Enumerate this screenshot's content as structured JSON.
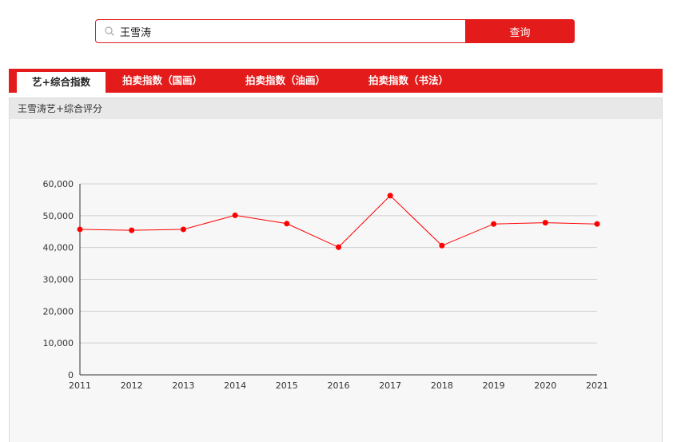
{
  "search": {
    "value": "王雪涛",
    "button_label": "查询"
  },
  "tabs": [
    {
      "label": "艺+综合指数",
      "active": true
    },
    {
      "label": "拍卖指数（国画）",
      "active": false
    },
    {
      "label": "拍卖指数（油画）",
      "active": false
    },
    {
      "label": "拍卖指数（书法）",
      "active": false
    }
  ],
  "panel": {
    "title": "王雪涛艺+综合评分"
  },
  "colors": {
    "accent": "#e31b1b",
    "line": "#ff0000"
  },
  "chart_data": {
    "type": "line",
    "title": "",
    "xlabel": "",
    "ylabel": "",
    "categories": [
      "2011",
      "2012",
      "2013",
      "2014",
      "2015",
      "2016",
      "2017",
      "2018",
      "2019",
      "2020",
      "2021"
    ],
    "series": [
      {
        "values": [
          45700,
          45400,
          45700,
          50100,
          47500,
          40100,
          56300,
          40600,
          47400,
          47800,
          47400
        ]
      }
    ],
    "ylim": [
      0,
      60000
    ],
    "yticks": [
      0,
      10000,
      20000,
      30000,
      40000,
      50000,
      60000
    ],
    "ytick_labels": [
      "0",
      "10,000",
      "20,000",
      "30,000",
      "40,000",
      "50,000",
      "60,000"
    ],
    "grid": true,
    "legend": "none"
  }
}
